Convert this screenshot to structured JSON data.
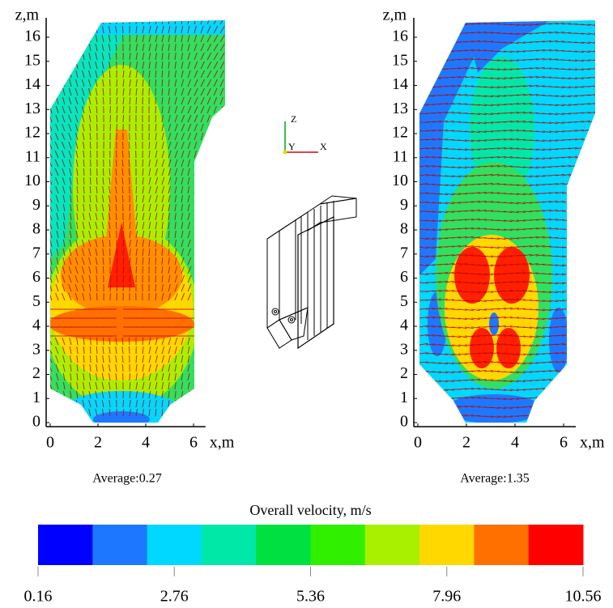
{
  "chart_data": [
    {
      "type": "contour",
      "xlabel": "x,m",
      "ylabel": "z,m",
      "xlim": [
        0,
        6.5
      ],
      "ylim": [
        0,
        16.5
      ],
      "xticks": [
        0,
        2,
        4,
        6
      ],
      "yticks": [
        0,
        1,
        2,
        3,
        4,
        5,
        6,
        7,
        8,
        9,
        10,
        11,
        12,
        13,
        14,
        15,
        16
      ],
      "annotation": "Average:0.27"
    },
    {
      "type": "contour",
      "xlabel": "x,m",
      "ylabel": "z,m",
      "xlim": [
        0,
        6.5
      ],
      "ylim": [
        0,
        16.5
      ],
      "xticks": [
        0,
        2,
        4,
        6
      ],
      "yticks": [
        0,
        1,
        2,
        3,
        4,
        5,
        6,
        7,
        8,
        9,
        10,
        11,
        12,
        13,
        14,
        15,
        16
      ],
      "annotation": "Average:1.35"
    },
    {
      "type": "colorbar",
      "title": "Overall velocity, m/s",
      "lim": [
        0.16,
        10.56
      ],
      "ticks": [
        0.16,
        2.76,
        5.36,
        7.96,
        10.56
      ],
      "colors": [
        "#0000ff",
        "#1e78ff",
        "#00d8ff",
        "#00e8a8",
        "#00e040",
        "#30f000",
        "#a8f000",
        "#ffd800",
        "#ff7000",
        "#ff0000"
      ]
    }
  ],
  "schematic": {
    "axes": [
      "Z",
      "Y",
      "X"
    ]
  }
}
